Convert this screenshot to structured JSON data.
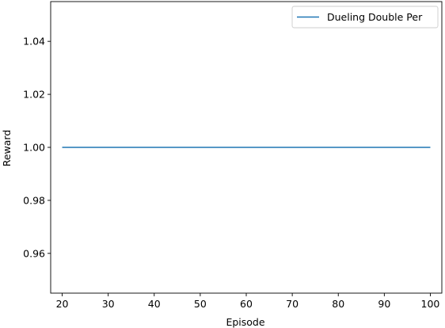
{
  "chart_data": {
    "type": "line",
    "title": "",
    "xlabel": "Episode",
    "ylabel": "Reward",
    "xlim": [
      17.5,
      102.5
    ],
    "ylim": [
      0.945,
      1.055
    ],
    "xticks": [
      20,
      30,
      40,
      50,
      60,
      70,
      80,
      90,
      100
    ],
    "yticks": [
      0.96,
      0.98,
      1.0,
      1.02,
      1.04
    ],
    "xtick_labels": [
      "20",
      "30",
      "40",
      "50",
      "60",
      "70",
      "80",
      "90",
      "100"
    ],
    "ytick_labels": [
      "0.96",
      "0.98",
      "1.00",
      "1.02",
      "1.04"
    ],
    "grid": false,
    "legend_position": "top-right",
    "series": [
      {
        "name": "Dueling Double Per",
        "color": "#1f77b4",
        "x": [
          20,
          100
        ],
        "y": [
          1.0,
          1.0
        ]
      }
    ]
  }
}
